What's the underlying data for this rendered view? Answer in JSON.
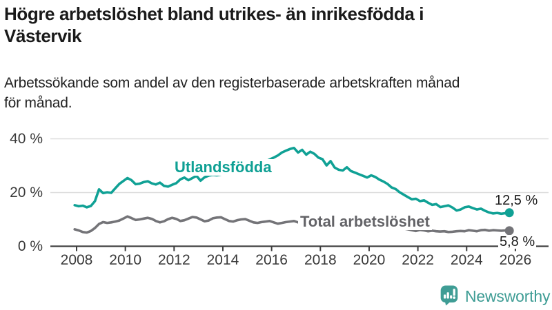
{
  "header": {
    "title_lines": [
      "Högre arbetslöshet bland utrikes- än inrikesfödda i",
      "Västervik"
    ],
    "subtitle_lines": [
      "Arbetssökande som andel av den registerbaserade arbetskraften månad",
      "för månad."
    ]
  },
  "chart_data": {
    "type": "line",
    "title": "Högre arbetslöshet bland utrikes- än inrikesfödda i Västervik",
    "subtitle": "Arbetssökande som andel av den registerbaserade arbetskraften månad för månad.",
    "y_unit": "%",
    "ylim": [
      0,
      40
    ],
    "grid": true,
    "x_ticks": [
      2008,
      2010,
      2012,
      2014,
      2016,
      2018,
      2020,
      2022,
      2024,
      2026
    ],
    "y_ticks": [
      {
        "value": 0,
        "label": "0 %"
      },
      {
        "value": 20,
        "label": "20 %"
      },
      {
        "value": 40,
        "label": "40 %"
      }
    ],
    "x_start": 2007.92,
    "x_step_years": 0.16667,
    "series": [
      {
        "name": "Utlandsfödda",
        "color": "#10a195",
        "end_label": "12,5 %",
        "end_value": 12.5,
        "values": [
          15.3,
          14.9,
          15.1,
          14.5,
          15.0,
          16.8,
          21.2,
          19.8,
          20.1,
          19.9,
          21.6,
          23.2,
          24.3,
          25.4,
          24.6,
          23.1,
          23.3,
          23.9,
          24.2,
          23.4,
          23.0,
          23.7,
          22.5,
          22.2,
          22.9,
          23.5,
          24.9,
          25.6,
          24.6,
          25.4,
          26.2,
          24.4,
          25.7,
          26.3,
          26.6,
          26.4,
          26.7,
          27.2,
          27.0,
          27.5,
          27.9,
          28.3,
          28.8,
          29.4,
          29.9,
          30.4,
          31.0,
          31.6,
          32.3,
          33.0,
          33.8,
          34.9,
          35.6,
          36.2,
          36.6,
          34.9,
          35.9,
          34.1,
          35.2,
          34.4,
          33.0,
          32.4,
          30.1,
          31.7,
          29.3,
          28.5,
          28.2,
          29.4,
          28.0,
          27.4,
          26.8,
          26.2,
          25.6,
          26.4,
          25.8,
          24.8,
          24.1,
          23.2,
          21.9,
          21.3,
          20.1,
          19.2,
          18.3,
          17.5,
          17.7,
          16.8,
          17.1,
          16.2,
          15.4,
          15.7,
          14.6,
          14.9,
          15.2,
          14.4,
          13.3,
          13.7,
          14.5,
          14.8,
          14.2,
          13.7,
          14.0,
          13.2,
          12.6,
          12.2,
          12.4,
          12.1,
          12.3,
          12.5
        ]
      },
      {
        "name": "Total arbetslöshet",
        "color": "#747478",
        "end_label": "5,8 %",
        "end_value": 5.8,
        "values": [
          6.3,
          5.9,
          5.3,
          5.1,
          5.7,
          6.8,
          8.3,
          9.0,
          8.7,
          8.9,
          9.2,
          9.6,
          10.3,
          11.1,
          10.5,
          9.8,
          10.0,
          10.3,
          10.6,
          10.2,
          9.4,
          8.9,
          9.3,
          10.1,
          10.6,
          10.2,
          9.4,
          9.7,
          10.3,
          10.9,
          10.7,
          10.0,
          9.3,
          9.6,
          10.4,
          10.7,
          10.8,
          10.1,
          9.4,
          9.2,
          9.7,
          10.0,
          10.1,
          9.5,
          8.9,
          8.7,
          9.0,
          9.2,
          9.4,
          8.9,
          8.4,
          8.7,
          9.0,
          9.2,
          9.4,
          8.9,
          8.5,
          8.6,
          8.8,
          8.6,
          8.3,
          8.0,
          7.7,
          7.9,
          7.6,
          7.4,
          7.3,
          7.1,
          6.9,
          7.0,
          6.9,
          7.0,
          7.2,
          7.9,
          8.3,
          8.2,
          8.0,
          7.8,
          7.5,
          7.2,
          6.9,
          6.6,
          6.3,
          6.0,
          5.7,
          6.1,
          5.9,
          5.6,
          5.8,
          5.6,
          5.5,
          5.6,
          5.3,
          5.4,
          5.6,
          5.7,
          5.6,
          6.0,
          5.8,
          5.6,
          6.0,
          6.1,
          5.8,
          6.0,
          5.9,
          5.8,
          5.9,
          5.8
        ]
      }
    ],
    "colors": {
      "grid": "#dcdcdc",
      "axis": "#3d3d3d",
      "tick_text": "#3a3a3a"
    }
  },
  "branding": {
    "logo_text": "Newsworthy",
    "logo_color": "#3f9d95",
    "logo_icon": "bar-chart-speech-bubble"
  }
}
